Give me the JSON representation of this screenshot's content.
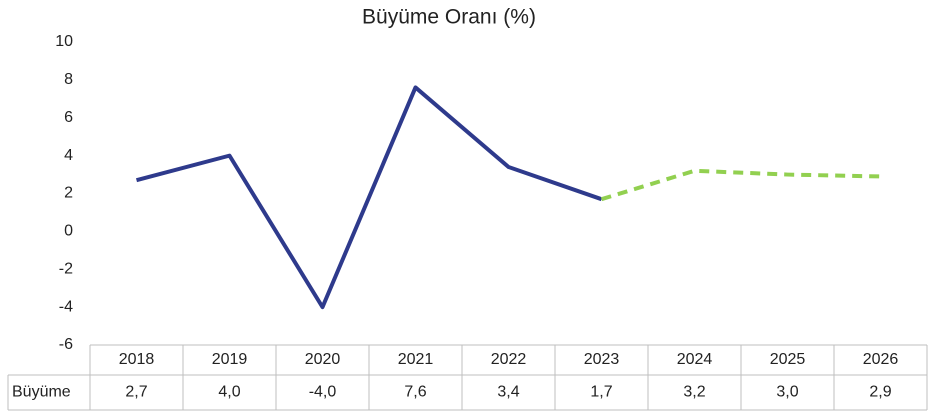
{
  "chart_data": {
    "type": "line",
    "title": "Büyüme Oranı (%)",
    "categories": [
      "2018",
      "2019",
      "2020",
      "2021",
      "2022",
      "2023",
      "2024",
      "2025",
      "2026"
    ],
    "series": [
      {
        "name": "Büyüme",
        "color": "#2e3a8c",
        "forecast_color": "#92d050",
        "forecast_from": 5,
        "values": [
          2.7,
          4.0,
          -4.0,
          7.6,
          3.4,
          1.7,
          3.2,
          3.0,
          2.9
        ],
        "value_labels": [
          "2,7",
          "4,0",
          "-4,0",
          "7,6",
          "3,4",
          "1,7",
          "3,2",
          "3,0",
          "2,9"
        ]
      }
    ],
    "ylim": [
      -6,
      10
    ],
    "yticks": [
      -6,
      -4,
      -2,
      0,
      2,
      4,
      6,
      8,
      10
    ],
    "grid": false,
    "data_table": true
  }
}
